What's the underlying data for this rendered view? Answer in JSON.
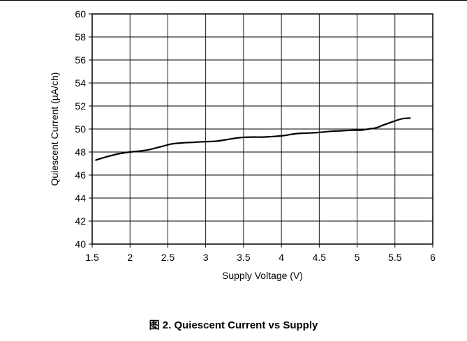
{
  "caption": "图 2. Quiescent Current vs Supply",
  "chart_data": {
    "type": "line",
    "xlabel": "Supply Voltage (V)",
    "ylabel": "Quiescent Current (µA/ch)",
    "xlim": [
      1.5,
      6
    ],
    "ylim": [
      40,
      60
    ],
    "xticks": [
      "1.5",
      "2",
      "2.5",
      "3",
      "3.5",
      "4",
      "4.5",
      "5",
      "5.5",
      "6"
    ],
    "yticks": [
      "40",
      "42",
      "44",
      "46",
      "48",
      "50",
      "52",
      "54",
      "56",
      "58",
      "60"
    ],
    "grid": true,
    "colors": {
      "line": "#000000",
      "grid": "#000000"
    },
    "series": [
      {
        "x": [
          1.55,
          1.7,
          1.85,
          2.0,
          2.15,
          2.25,
          2.4,
          2.55,
          2.7,
          2.85,
          3.0,
          3.15,
          3.3,
          3.45,
          3.6,
          3.75,
          3.9,
          4.05,
          4.2,
          4.35,
          4.5,
          4.65,
          4.8,
          4.95,
          5.05,
          5.15,
          5.25,
          5.35,
          5.5,
          5.6,
          5.7
        ],
        "y": [
          47.3,
          47.6,
          47.85,
          48.0,
          48.1,
          48.2,
          48.45,
          48.7,
          48.8,
          48.85,
          48.9,
          48.95,
          49.1,
          49.25,
          49.3,
          49.3,
          49.35,
          49.45,
          49.6,
          49.65,
          49.7,
          49.8,
          49.85,
          49.9,
          49.9,
          50.0,
          50.1,
          50.35,
          50.7,
          50.9,
          50.95
        ]
      }
    ]
  }
}
